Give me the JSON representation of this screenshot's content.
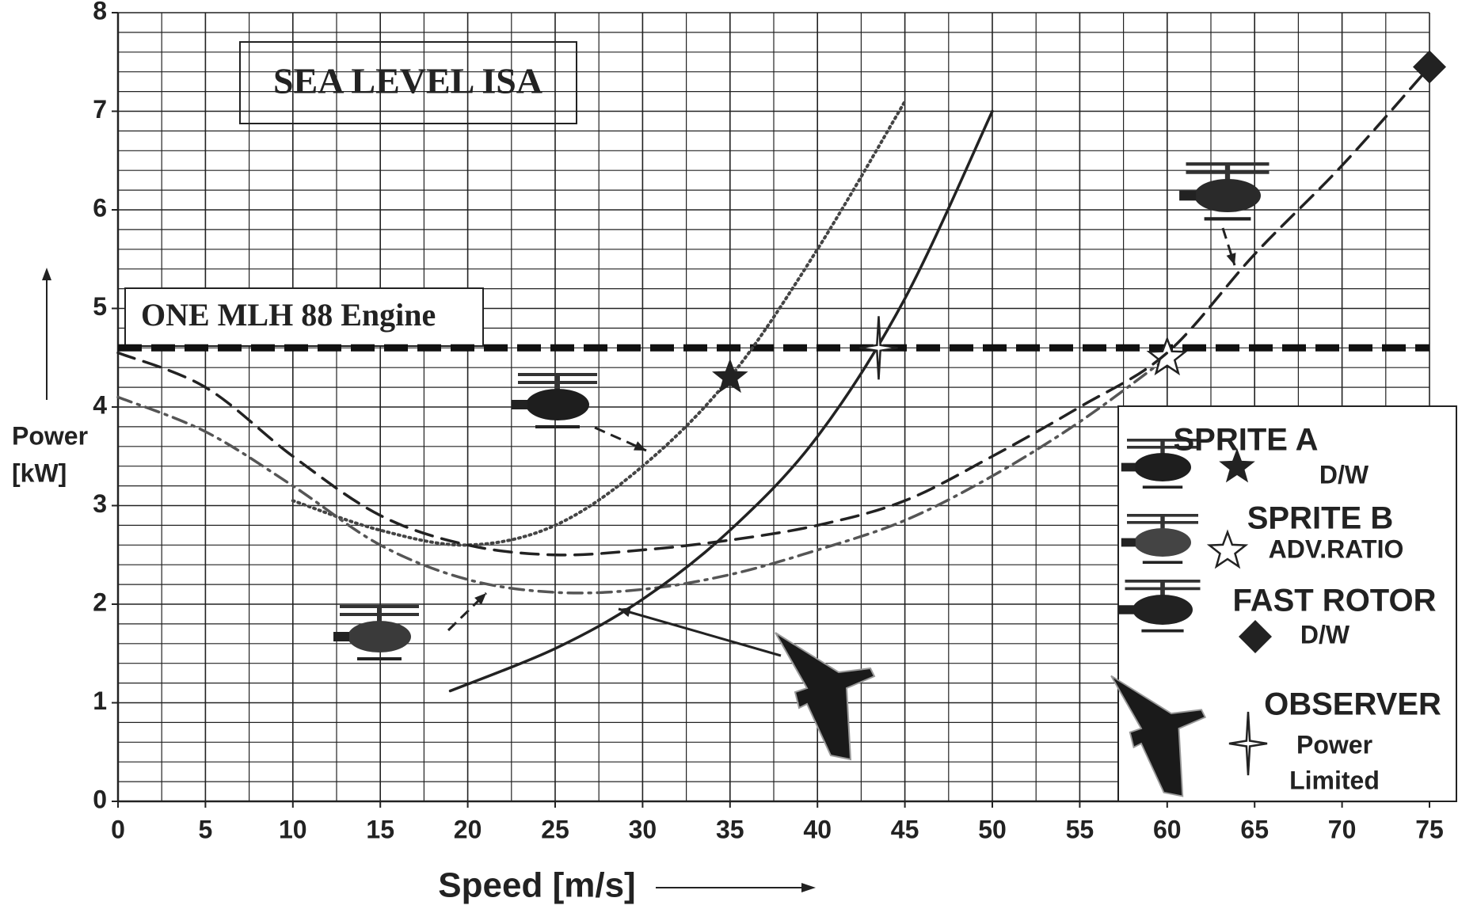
{
  "chart_data": {
    "type": "line",
    "title": "SEA LEVEL ISA",
    "x_label": "Speed [m/s]",
    "y_label": [
      "Power",
      "[kW]"
    ],
    "xlim": [
      0,
      75
    ],
    "xticks": [
      0,
      5,
      10,
      15,
      20,
      25,
      30,
      35,
      40,
      45,
      50,
      55,
      60,
      65,
      70,
      75
    ],
    "ylim": [
      0,
      8
    ],
    "yticks": [
      0,
      1,
      2,
      3,
      4,
      5,
      6,
      7,
      8
    ],
    "grid": true,
    "legend": "lower right",
    "limit": {
      "label": "ONE MLH 88 Engine",
      "value": 4.6,
      "color": "#111"
    },
    "series": [
      {
        "name": "SPRITE A",
        "note": [
          "D/W"
        ],
        "color": "#444",
        "style": "dotted",
        "x": [
          10,
          15,
          20,
          25,
          30,
          35,
          40,
          45
        ],
        "values": [
          3.05,
          2.75,
          2.6,
          2.8,
          3.4,
          4.3,
          5.6,
          7.1
        ],
        "marker": {
          "shape": "star",
          "x": 35,
          "y": 4.3
        }
      },
      {
        "name": "SPRITE B",
        "note": [
          "ADV.RATIO"
        ],
        "color": "#555",
        "style": "dashdot",
        "x": [
          0,
          5,
          10,
          15,
          20,
          25,
          30,
          35,
          40,
          45,
          50,
          55,
          60
        ],
        "values": [
          4.1,
          3.75,
          3.2,
          2.6,
          2.25,
          2.12,
          2.15,
          2.3,
          2.55,
          2.85,
          3.3,
          3.85,
          4.5
        ],
        "marker": {
          "shape": "open-star",
          "x": 60,
          "y": 4.5
        }
      },
      {
        "name": "FAST ROTOR",
        "note": [
          "D/W"
        ],
        "color": "#222",
        "style": "dashed",
        "x": [
          0,
          5,
          10,
          15,
          20,
          25,
          30,
          35,
          40,
          45,
          50,
          55,
          60,
          65,
          70,
          75
        ],
        "values": [
          4.55,
          4.2,
          3.5,
          2.9,
          2.6,
          2.5,
          2.55,
          2.65,
          2.8,
          3.05,
          3.5,
          4.0,
          4.55,
          5.55,
          6.45,
          7.45
        ],
        "marker": {
          "shape": "diamond",
          "x": 75,
          "y": 7.45
        }
      },
      {
        "name": "OBSERVER",
        "note": [
          "Power",
          "Limited"
        ],
        "color": "#222",
        "style": "solid",
        "x": [
          19,
          25,
          30,
          35,
          40,
          45,
          50
        ],
        "values": [
          1.12,
          1.55,
          2.05,
          2.75,
          3.7,
          5.1,
          7.0
        ],
        "marker": {
          "shape": "four-star",
          "x": 43.5,
          "y": 4.6
        }
      }
    ]
  }
}
